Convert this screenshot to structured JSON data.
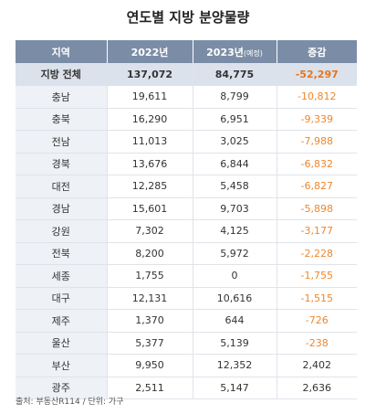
{
  "title": "연도별 지방 분양물량",
  "headers": {
    "region": "지역",
    "y2022": "2022년",
    "y2023": "2023년",
    "y2023_note": "(예정)",
    "change": "증감"
  },
  "total": {
    "region": "지방 전체",
    "y2022": "137,072",
    "y2023": "84,775",
    "change": "-52,297"
  },
  "rows": [
    {
      "region": "충남",
      "y2022": "19,611",
      "y2023": "8,799",
      "change": "-10,812"
    },
    {
      "region": "충북",
      "y2022": "16,290",
      "y2023": "6,951",
      "change": "-9,339"
    },
    {
      "region": "전남",
      "y2022": "11,013",
      "y2023": "3,025",
      "change": "-7,988"
    },
    {
      "region": "경북",
      "y2022": "13,676",
      "y2023": "6,844",
      "change": "-6,832"
    },
    {
      "region": "대전",
      "y2022": "12,285",
      "y2023": "5,458",
      "change": "-6,827"
    },
    {
      "region": "경남",
      "y2022": "15,601",
      "y2023": "9,703",
      "change": "-5,898"
    },
    {
      "region": "강원",
      "y2022": "7,302",
      "y2023": "4,125",
      "change": "-3,177"
    },
    {
      "region": "전북",
      "y2022": "8,200",
      "y2023": "5,972",
      "change": "-2,228"
    },
    {
      "region": "세종",
      "y2022": "1,755",
      "y2023": "0",
      "change": "-1,755"
    },
    {
      "region": "대구",
      "y2022": "12,131",
      "y2023": "10,616",
      "change": "-1,515"
    },
    {
      "region": "제주",
      "y2022": "1,370",
      "y2023": "644",
      "change": "-726"
    },
    {
      "region": "울산",
      "y2022": "5,377",
      "y2023": "5,139",
      "change": "-238"
    },
    {
      "region": "부산",
      "y2022": "9,950",
      "y2023": "12,352",
      "change": "2,402"
    },
    {
      "region": "광주",
      "y2022": "2,511",
      "y2023": "5,147",
      "change": "2,636"
    }
  ],
  "source": "출처: 부동산R114 / 단위: 가구",
  "colors": {
    "header_bg": "#7b8da6",
    "total_bg": "#dbe2ec",
    "region_bg": "#eef1f5",
    "negative": "#f0862b"
  }
}
